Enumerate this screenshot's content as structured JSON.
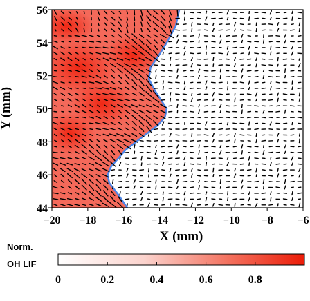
{
  "chart_data": [
    {
      "type": "heatmap",
      "xlabel": "X (mm)",
      "ylabel": "Y (mm)",
      "xlim": [
        -20,
        -6
      ],
      "ylim": [
        44,
        56
      ],
      "xticks": [
        -20,
        -18,
        -16,
        -14,
        -12,
        -10,
        -8,
        -6
      ],
      "yticks": [
        44,
        46,
        48,
        50,
        52,
        54,
        56
      ],
      "xtick_labels": [
        "−20",
        "−18",
        "−16",
        "−14",
        "−12",
        "−10",
        "−8",
        "−6"
      ],
      "ytick_labels": [
        "44",
        "46",
        "48",
        "50",
        "52",
        "54",
        "56"
      ],
      "field": "Normalized OH LIF intensity (red = high, white = low)",
      "boundary": {
        "description": "Blue flame-front contour separating high-OH region (left) from low-OH region (right)",
        "x": [
          -12.9,
          -13.1,
          -13.6,
          -14.0,
          -14.5,
          -14.6,
          -14.2,
          -13.6,
          -13.7,
          -14.1,
          -14.7,
          -15.3,
          -15.9,
          -16.3,
          -16.7,
          -16.9,
          -16.8,
          -16.3,
          -15.8
        ],
        "y": [
          56.0,
          55.0,
          54.0,
          53.3,
          52.5,
          51.8,
          51.0,
          50.0,
          49.5,
          49.0,
          48.5,
          48.0,
          47.5,
          47.0,
          46.5,
          46.0,
          45.5,
          44.8,
          44.0
        ]
      },
      "vectors": "Velocity vector field overlaid on a regular grid across the full domain"
    },
    {
      "type": "colorbar",
      "title_line1": "Norm.",
      "title_line2": "OH LIF",
      "range": [
        0,
        1
      ],
      "ticks": [
        0,
        0.2,
        0.4,
        0.6,
        0.8
      ],
      "tick_labels": [
        "0",
        "0.2",
        "0.4",
        "0.6",
        "0.8"
      ],
      "color_low": "#ffffff",
      "color_high": "#ee1c08"
    }
  ],
  "colors": {
    "high": "#ee1c08",
    "mid": "#f5715f",
    "low": "#ffffff",
    "boundary": "#4d86e8",
    "vectors": "#000000"
  }
}
